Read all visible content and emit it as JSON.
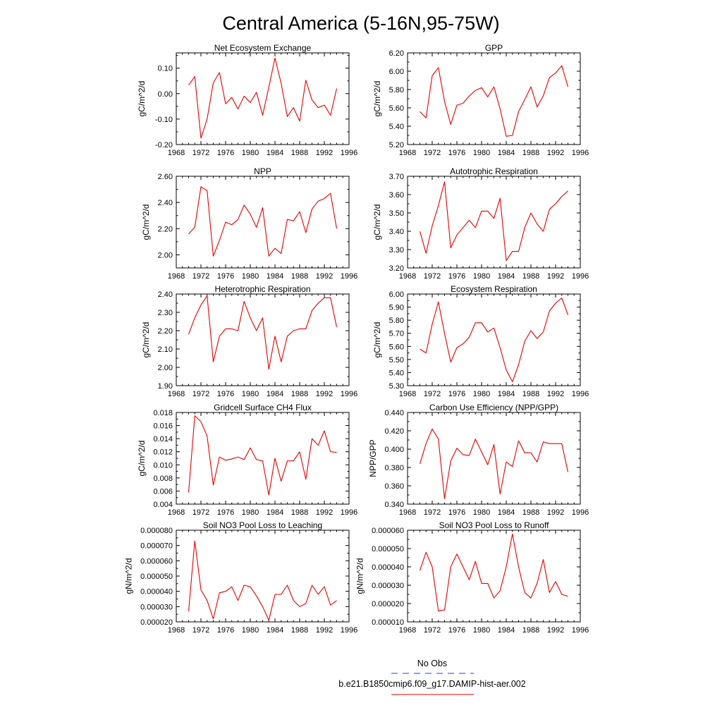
{
  "figure": {
    "title": "Central America (5-16N,95-75W)"
  },
  "legend": {
    "entries": [
      {
        "label": "No Obs",
        "color": "#3333ff",
        "dash": "dashed"
      },
      {
        "label": "b.e21.B1850cmip6.f09_g17.DAMIP-hist-aer.002",
        "color": "#e60000",
        "dash": "solid"
      }
    ]
  },
  "chart_data": [
    {
      "type": "line",
      "title": "Net Ecosystem Exchange",
      "ylabel": "gC/m^2/d",
      "xlim": [
        1968,
        1996
      ],
      "ylim": [
        -0.2,
        0.16
      ],
      "xticks": [
        1968,
        1972,
        1976,
        1980,
        1984,
        1988,
        1992,
        1996
      ],
      "yticks": [
        -0.2,
        -0.1,
        0.0,
        0.1
      ],
      "ytick_labels": [
        "-0.20",
        "-0.10",
        "0.00",
        "0.10"
      ],
      "series": [
        {
          "color": "#e60000",
          "x": [
            1970,
            1971,
            1972,
            1973,
            1974,
            1975,
            1976,
            1977,
            1978,
            1979,
            1980,
            1981,
            1982,
            1983,
            1984,
            1985,
            1986,
            1987,
            1988,
            1989,
            1990,
            1991,
            1992,
            1993,
            1994
          ],
          "y": [
            0.033,
            0.067,
            -0.175,
            -0.1,
            0.043,
            0.083,
            -0.04,
            -0.015,
            -0.06,
            -0.01,
            -0.035,
            0.005,
            -0.085,
            0.025,
            0.14,
            0.04,
            -0.09,
            -0.055,
            -0.108,
            0.053,
            -0.025,
            -0.055,
            -0.045,
            -0.085,
            0.02
          ]
        }
      ]
    },
    {
      "type": "line",
      "title": "GPP",
      "ylabel": "gC/m^2/d",
      "xlim": [
        1968,
        1996
      ],
      "ylim": [
        5.2,
        6.2
      ],
      "xticks": [
        1968,
        1972,
        1976,
        1980,
        1984,
        1988,
        1992,
        1996
      ],
      "yticks": [
        5.2,
        5.4,
        5.6,
        5.8,
        6.0,
        6.2
      ],
      "ytick_labels": [
        "5.20",
        "5.40",
        "5.60",
        "5.80",
        "6.00",
        "6.20"
      ],
      "series": [
        {
          "color": "#e60000",
          "x": [
            1970,
            1971,
            1972,
            1973,
            1974,
            1975,
            1976,
            1977,
            1978,
            1979,
            1980,
            1981,
            1982,
            1983,
            1984,
            1985,
            1986,
            1987,
            1988,
            1989,
            1990,
            1991,
            1992,
            1993,
            1994
          ],
          "y": [
            5.56,
            5.49,
            5.95,
            6.04,
            5.67,
            5.42,
            5.63,
            5.65,
            5.73,
            5.79,
            5.82,
            5.72,
            5.83,
            5.59,
            5.29,
            5.3,
            5.56,
            5.69,
            5.83,
            5.61,
            5.73,
            5.93,
            5.98,
            6.06,
            5.83
          ]
        }
      ]
    },
    {
      "type": "line",
      "title": "NPP",
      "ylabel": "gC/m^2/d",
      "xlim": [
        1968,
        1996
      ],
      "ylim": [
        1.9,
        2.6
      ],
      "xticks": [
        1968,
        1972,
        1976,
        1980,
        1984,
        1988,
        1992,
        1996
      ],
      "yticks": [
        2.0,
        2.2,
        2.4,
        2.6
      ],
      "ytick_labels": [
        "2.00",
        "2.20",
        "2.40",
        "2.60"
      ],
      "series": [
        {
          "color": "#e60000",
          "x": [
            1970,
            1971,
            1972,
            1973,
            1974,
            1975,
            1976,
            1977,
            1978,
            1979,
            1980,
            1981,
            1982,
            1983,
            1984,
            1985,
            1986,
            1987,
            1988,
            1989,
            1990,
            1991,
            1992,
            1993,
            1994
          ],
          "y": [
            2.16,
            2.21,
            2.52,
            2.49,
            1.99,
            2.11,
            2.25,
            2.23,
            2.27,
            2.38,
            2.31,
            2.21,
            2.36,
            1.99,
            2.05,
            2.01,
            2.27,
            2.26,
            2.33,
            2.17,
            2.35,
            2.41,
            2.43,
            2.47,
            2.2
          ]
        }
      ]
    },
    {
      "type": "line",
      "title": "Autotrophic Respiration",
      "ylabel": "gC/m^2/d",
      "xlim": [
        1968,
        1996
      ],
      "ylim": [
        3.2,
        3.7
      ],
      "xticks": [
        1968,
        1972,
        1976,
        1980,
        1984,
        1988,
        1992,
        1996
      ],
      "yticks": [
        3.2,
        3.3,
        3.4,
        3.5,
        3.6,
        3.7
      ],
      "ytick_labels": [
        "3.20",
        "3.30",
        "3.40",
        "3.50",
        "3.60",
        "3.70"
      ],
      "series": [
        {
          "color": "#e60000",
          "x": [
            1970,
            1971,
            1972,
            1973,
            1974,
            1975,
            1976,
            1977,
            1978,
            1979,
            1980,
            1981,
            1982,
            1983,
            1984,
            1985,
            1986,
            1987,
            1988,
            1989,
            1990,
            1991,
            1992,
            1993,
            1994
          ],
          "y": [
            3.4,
            3.28,
            3.43,
            3.54,
            3.67,
            3.31,
            3.38,
            3.42,
            3.46,
            3.42,
            3.51,
            3.51,
            3.47,
            3.58,
            3.24,
            3.29,
            3.29,
            3.42,
            3.5,
            3.44,
            3.4,
            3.52,
            3.55,
            3.59,
            3.62
          ]
        }
      ]
    },
    {
      "type": "line",
      "title": "Heterotrophic Respiration",
      "ylabel": "gC/m^2/d",
      "xlim": [
        1968,
        1996
      ],
      "ylim": [
        1.9,
        2.4
      ],
      "xticks": [
        1968,
        1972,
        1976,
        1980,
        1984,
        1988,
        1992,
        1996
      ],
      "yticks": [
        1.9,
        2.0,
        2.1,
        2.2,
        2.3,
        2.4
      ],
      "ytick_labels": [
        "1.90",
        "2.00",
        "2.10",
        "2.20",
        "2.30",
        "2.40"
      ],
      "series": [
        {
          "color": "#e60000",
          "x": [
            1970,
            1971,
            1972,
            1973,
            1974,
            1975,
            1976,
            1977,
            1978,
            1979,
            1980,
            1981,
            1982,
            1983,
            1984,
            1985,
            1986,
            1987,
            1988,
            1989,
            1990,
            1991,
            1992,
            1993,
            1994
          ],
          "y": [
            2.18,
            2.27,
            2.34,
            2.39,
            2.03,
            2.17,
            2.21,
            2.21,
            2.2,
            2.36,
            2.27,
            2.2,
            2.27,
            1.99,
            2.17,
            2.03,
            2.17,
            2.2,
            2.21,
            2.21,
            2.31,
            2.35,
            2.38,
            2.38,
            2.22
          ]
        }
      ]
    },
    {
      "type": "line",
      "title": "Ecosystem Respiration",
      "ylabel": "gC/m^2/d",
      "xlim": [
        1968,
        1996
      ],
      "ylim": [
        5.3,
        6.0
      ],
      "xticks": [
        1968,
        1972,
        1976,
        1980,
        1984,
        1988,
        1992,
        1996
      ],
      "yticks": [
        5.3,
        5.4,
        5.5,
        5.6,
        5.7,
        5.8,
        5.9,
        6.0
      ],
      "ytick_labels": [
        "5.30",
        "5.40",
        "5.50",
        "5.60",
        "5.70",
        "5.80",
        "5.90",
        "6.00"
      ],
      "series": [
        {
          "color": "#e60000",
          "x": [
            1970,
            1971,
            1972,
            1973,
            1974,
            1975,
            1976,
            1977,
            1978,
            1979,
            1980,
            1981,
            1982,
            1983,
            1984,
            1985,
            1986,
            1987,
            1988,
            1989,
            1990,
            1991,
            1992,
            1993,
            1994
          ],
          "y": [
            5.58,
            5.55,
            5.77,
            5.94,
            5.7,
            5.48,
            5.59,
            5.62,
            5.67,
            5.78,
            5.78,
            5.71,
            5.74,
            5.59,
            5.42,
            5.33,
            5.46,
            5.64,
            5.72,
            5.66,
            5.71,
            5.87,
            5.93,
            5.97,
            5.84
          ]
        }
      ]
    },
    {
      "type": "line",
      "title": "Gridcell Surface CH4 Flux",
      "ylabel": "gC/m^2/d",
      "xlim": [
        1968,
        1996
      ],
      "ylim": [
        0.004,
        0.018
      ],
      "xticks": [
        1968,
        1972,
        1976,
        1980,
        1984,
        1988,
        1992,
        1996
      ],
      "yticks": [
        0.004,
        0.006,
        0.008,
        0.01,
        0.012,
        0.014,
        0.016,
        0.018
      ],
      "ytick_labels": [
        "0.004",
        "0.006",
        "0.008",
        "0.010",
        "0.012",
        "0.014",
        "0.016",
        "0.018"
      ],
      "series": [
        {
          "color": "#e60000",
          "x": [
            1970,
            1971,
            1972,
            1973,
            1974,
            1975,
            1976,
            1977,
            1978,
            1979,
            1980,
            1981,
            1982,
            1983,
            1984,
            1985,
            1986,
            1987,
            1988,
            1989,
            1990,
            1991,
            1992,
            1993,
            1994
          ],
          "y": [
            0.0058,
            0.0175,
            0.0166,
            0.0144,
            0.0069,
            0.0112,
            0.0107,
            0.0109,
            0.0112,
            0.0108,
            0.0126,
            0.0108,
            0.0106,
            0.0054,
            0.011,
            0.0075,
            0.0106,
            0.0106,
            0.012,
            0.0078,
            0.014,
            0.013,
            0.0152,
            0.012,
            0.0119
          ]
        }
      ]
    },
    {
      "type": "line",
      "title": "Carbon Use Efficiency (NPP/GPP)",
      "ylabel": "NPP/GPP",
      "xlim": [
        1968,
        1996
      ],
      "ylim": [
        0.34,
        0.44
      ],
      "xticks": [
        1968,
        1972,
        1976,
        1980,
        1984,
        1988,
        1992,
        1996
      ],
      "yticks": [
        0.34,
        0.36,
        0.38,
        0.4,
        0.42,
        0.44
      ],
      "ytick_labels": [
        "0.340",
        "0.360",
        "0.380",
        "0.400",
        "0.420",
        "0.440"
      ],
      "series": [
        {
          "color": "#e60000",
          "x": [
            1970,
            1971,
            1972,
            1973,
            1974,
            1975,
            1976,
            1977,
            1978,
            1979,
            1980,
            1981,
            1982,
            1983,
            1984,
            1985,
            1986,
            1987,
            1988,
            1989,
            1990,
            1991,
            1992,
            1993,
            1994
          ],
          "y": [
            0.384,
            0.406,
            0.422,
            0.411,
            0.346,
            0.387,
            0.401,
            0.394,
            0.393,
            0.411,
            0.397,
            0.383,
            0.405,
            0.351,
            0.386,
            0.381,
            0.409,
            0.396,
            0.396,
            0.386,
            0.408,
            0.406,
            0.406,
            0.406,
            0.375
          ]
        }
      ]
    },
    {
      "type": "line",
      "title": "Soil NO3 Pool Loss to Leaching",
      "ylabel": "gN/m^2/d",
      "xlim": [
        1968,
        1996
      ],
      "ylim": [
        2e-05,
        8e-05
      ],
      "xticks": [
        1968,
        1972,
        1976,
        1980,
        1984,
        1988,
        1992,
        1996
      ],
      "yticks": [
        2e-05,
        3e-05,
        4e-05,
        5e-05,
        6e-05,
        7e-05,
        8e-05
      ],
      "ytick_labels": [
        "0.000020",
        "0.000030",
        "0.000040",
        "0.000050",
        "0.000060",
        "0.000070",
        "0.000080"
      ],
      "series": [
        {
          "color": "#e60000",
          "x": [
            1970,
            1971,
            1972,
            1973,
            1974,
            1975,
            1976,
            1977,
            1978,
            1979,
            1980,
            1981,
            1982,
            1983,
            1984,
            1985,
            1986,
            1987,
            1988,
            1989,
            1990,
            1991,
            1992,
            1993,
            1994
          ],
          "y": [
            2.7e-05,
            7.3e-05,
            4.1e-05,
            3.4e-05,
            2.2e-05,
            3.9e-05,
            4e-05,
            4.3e-05,
            3.4e-05,
            4.4e-05,
            4.3e-05,
            3.7e-05,
            3e-05,
            2.1e-05,
            3.8e-05,
            3.8e-05,
            4.4e-05,
            3.4e-05,
            3e-05,
            3.2e-05,
            4.4e-05,
            3.8e-05,
            4.3e-05,
            3.1e-05,
            3.4e-05
          ]
        }
      ]
    },
    {
      "type": "line",
      "title": "Soil NO3 Pool Loss to Runoff",
      "ylabel": "gN/m^2/d",
      "xlim": [
        1968,
        1996
      ],
      "ylim": [
        1e-05,
        6e-05
      ],
      "xticks": [
        1968,
        1972,
        1976,
        1980,
        1984,
        1988,
        1992,
        1996
      ],
      "yticks": [
        1e-05,
        2e-05,
        3e-05,
        4e-05,
        5e-05,
        6e-05
      ],
      "ytick_labels": [
        "0.000010",
        "0.000020",
        "0.000030",
        "0.000040",
        "0.000050",
        "0.000060"
      ],
      "series": [
        {
          "color": "#e60000",
          "x": [
            1970,
            1971,
            1972,
            1973,
            1974,
            1975,
            1976,
            1977,
            1978,
            1979,
            1980,
            1981,
            1982,
            1983,
            1984,
            1985,
            1986,
            1987,
            1988,
            1989,
            1990,
            1991,
            1992,
            1993,
            1994
          ],
          "y": [
            3.8e-05,
            4.8e-05,
            4e-05,
            1.6e-05,
            1.65e-05,
            4e-05,
            4.7e-05,
            4e-05,
            3.3e-05,
            4.3e-05,
            3.1e-05,
            3.1e-05,
            2.3e-05,
            2.7e-05,
            4e-05,
            5.8e-05,
            4e-05,
            2.6e-05,
            2.3e-05,
            3.1e-05,
            4.4e-05,
            2.6e-05,
            3.2e-05,
            2.5e-05,
            2.4e-05
          ]
        }
      ]
    }
  ]
}
